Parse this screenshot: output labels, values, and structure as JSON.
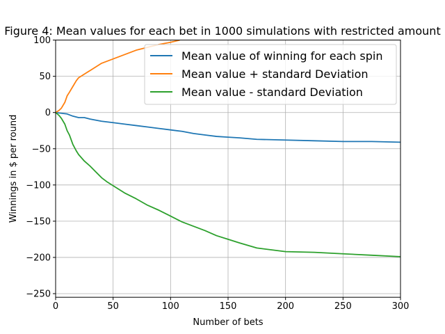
{
  "chart_data": {
    "type": "line",
    "title": "Figure 4: Mean values for each bet in 1000 simulations with restricted amount",
    "xlabel": "Number of bets",
    "ylabel": "Winnings in $ per round",
    "xlim": [
      0,
      300
    ],
    "ylim": [
      -255,
      100
    ],
    "xticks": [
      0,
      50,
      100,
      150,
      200,
      250,
      300
    ],
    "yticks": [
      -250,
      -200,
      -150,
      -100,
      -50,
      0,
      50,
      100
    ],
    "grid": true,
    "legend_position": "top-right",
    "series": [
      {
        "name": "Mean value of winning for each spin",
        "color": "#1f77b4",
        "x": [
          0,
          5,
          10,
          15,
          20,
          25,
          30,
          40,
          50,
          60,
          70,
          80,
          90,
          100,
          110,
          120,
          130,
          140,
          150,
          160,
          175,
          200,
          225,
          250,
          275,
          300
        ],
        "y": [
          0,
          -1,
          -2,
          -5,
          -7,
          -7,
          -9,
          -12,
          -14,
          -16,
          -18,
          -20,
          -22,
          -24,
          -26,
          -29,
          -31,
          -33,
          -34,
          -35,
          -37,
          -38,
          -39,
          -40,
          -40,
          -41
        ]
      },
      {
        "name": "Mean value + standard Deviation",
        "color": "#ff7f0e",
        "x": [
          0,
          3,
          5,
          8,
          10,
          12,
          15,
          18,
          20,
          25,
          30,
          35,
          40,
          45,
          50,
          60,
          70,
          80,
          90,
          100,
          108
        ],
        "y": [
          0,
          3,
          6,
          14,
          23,
          28,
          36,
          44,
          48,
          53,
          58,
          63,
          68,
          71,
          74,
          80,
          86,
          90,
          94,
          97,
          100
        ]
      },
      {
        "name": "Mean value - standard Deviation",
        "color": "#2ca02c",
        "x": [
          0,
          3,
          5,
          8,
          10,
          12,
          15,
          18,
          20,
          25,
          30,
          35,
          40,
          45,
          50,
          60,
          70,
          80,
          90,
          100,
          110,
          120,
          130,
          140,
          150,
          160,
          175,
          200,
          225,
          250,
          275,
          300
        ],
        "y": [
          0,
          -4,
          -8,
          -16,
          -25,
          -31,
          -44,
          -53,
          -58,
          -67,
          -74,
          -82,
          -90,
          -96,
          -101,
          -111,
          -119,
          -128,
          -135,
          -143,
          -151,
          -157,
          -163,
          -170,
          -175,
          -180,
          -187,
          -192,
          -193,
          -195,
          -197,
          -199
        ]
      }
    ]
  }
}
